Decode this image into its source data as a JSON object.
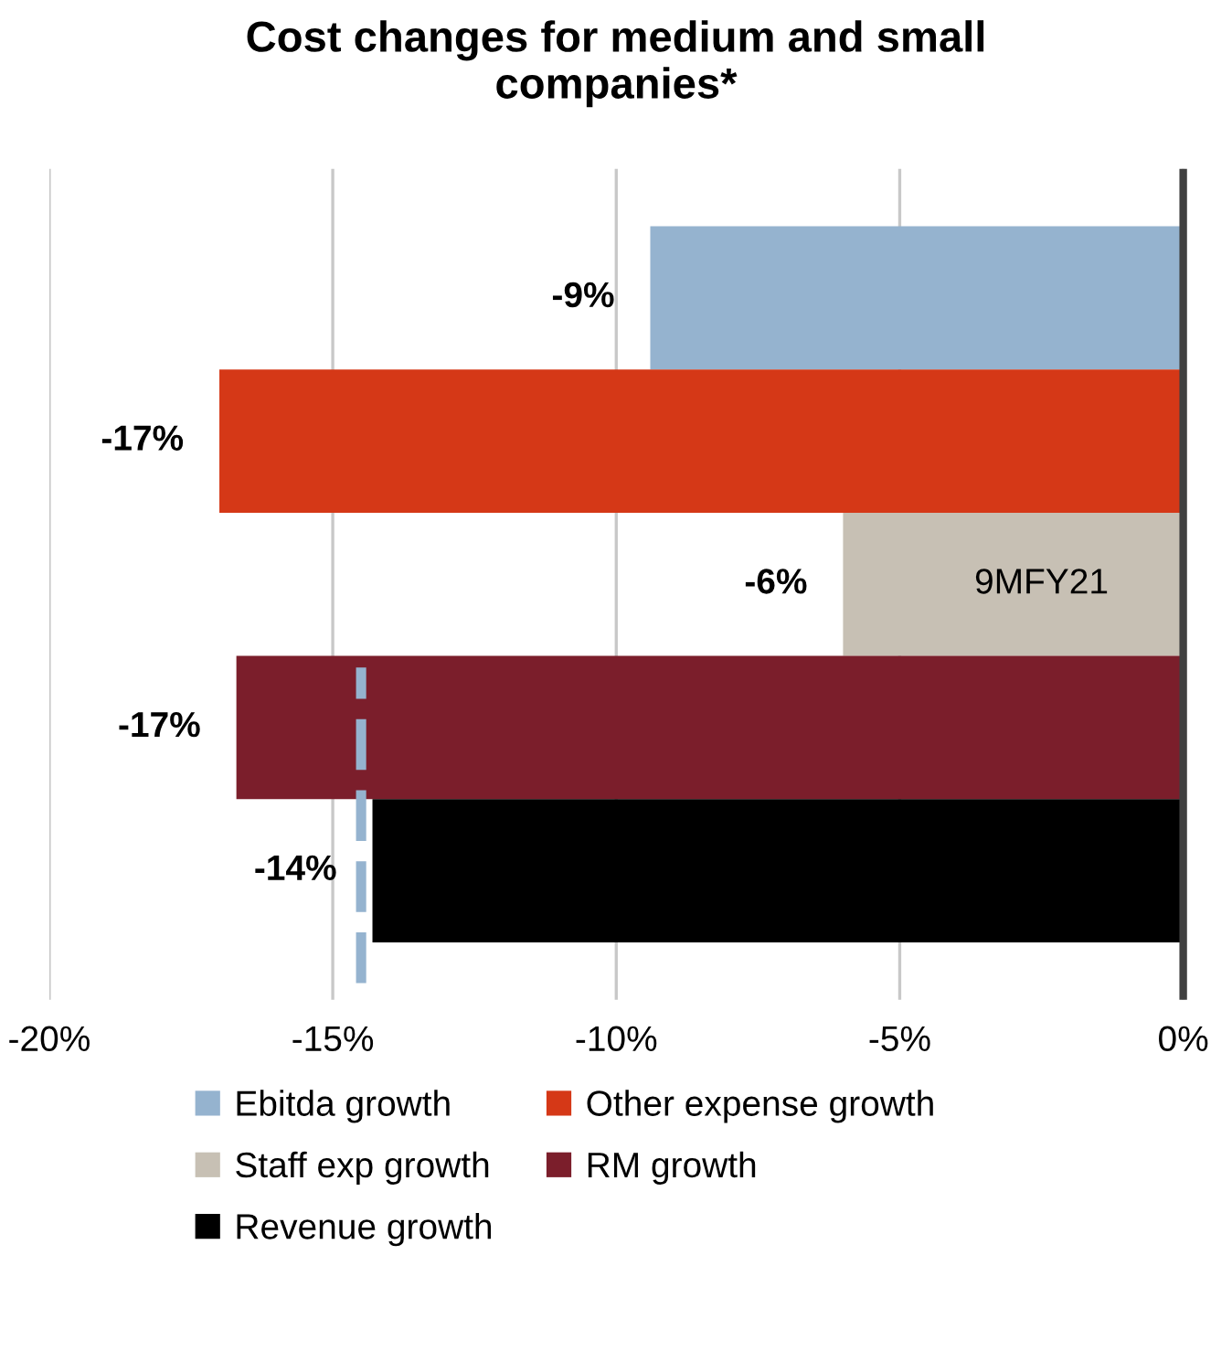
{
  "chart_data": {
    "type": "bar",
    "orientation": "horizontal",
    "title": "Cost changes for medium and small\ncompanies*",
    "categories": [
      null,
      null,
      null,
      null,
      null
    ],
    "series": [
      {
        "name": "Ebitda growth",
        "color": "#95b3cf",
        "values": [
          -9.4,
          null,
          null,
          null,
          null
        ],
        "value_labels": [
          "-9%",
          null,
          null,
          null,
          null
        ]
      },
      {
        "name": "Other expense growth",
        "color": "#d53817",
        "values": [
          null,
          -17.0,
          null,
          null,
          null
        ],
        "value_labels": [
          null,
          "-17%",
          null,
          null,
          null
        ]
      },
      {
        "name": "Staff exp growth",
        "color": "#c7c0b4",
        "values": [
          null,
          null,
          -6.0,
          null,
          null
        ],
        "value_labels": [
          null,
          null,
          "-6%",
          null,
          null
        ]
      },
      {
        "name": "RM growth",
        "color": "#7b1e2b",
        "values": [
          null,
          null,
          null,
          -16.7,
          null
        ],
        "value_labels": [
          null,
          null,
          null,
          "-17%",
          null
        ]
      },
      {
        "name": "Revenue growth",
        "color": "#000000",
        "values": [
          null,
          null,
          null,
          null,
          -14.3
        ],
        "value_labels": [
          null,
          null,
          null,
          null,
          "-14%"
        ]
      }
    ],
    "xlim": [
      -20,
      0.1
    ],
    "xticks": [
      {
        "value": -20,
        "label": "-20%"
      },
      {
        "value": -15,
        "label": "-15%"
      },
      {
        "value": -10,
        "label": "-10%"
      },
      {
        "value": -5,
        "label": "-5%"
      },
      {
        "value": 0,
        "label": "0%"
      }
    ],
    "ref_lines": [
      {
        "axis": "x",
        "value": -14.5,
        "color": "#95b3cf",
        "line_style": "dashed"
      }
    ],
    "annotations": [
      "9MFY21"
    ],
    "grid": "x",
    "legend": "bottom",
    "tick_labels": "x"
  }
}
